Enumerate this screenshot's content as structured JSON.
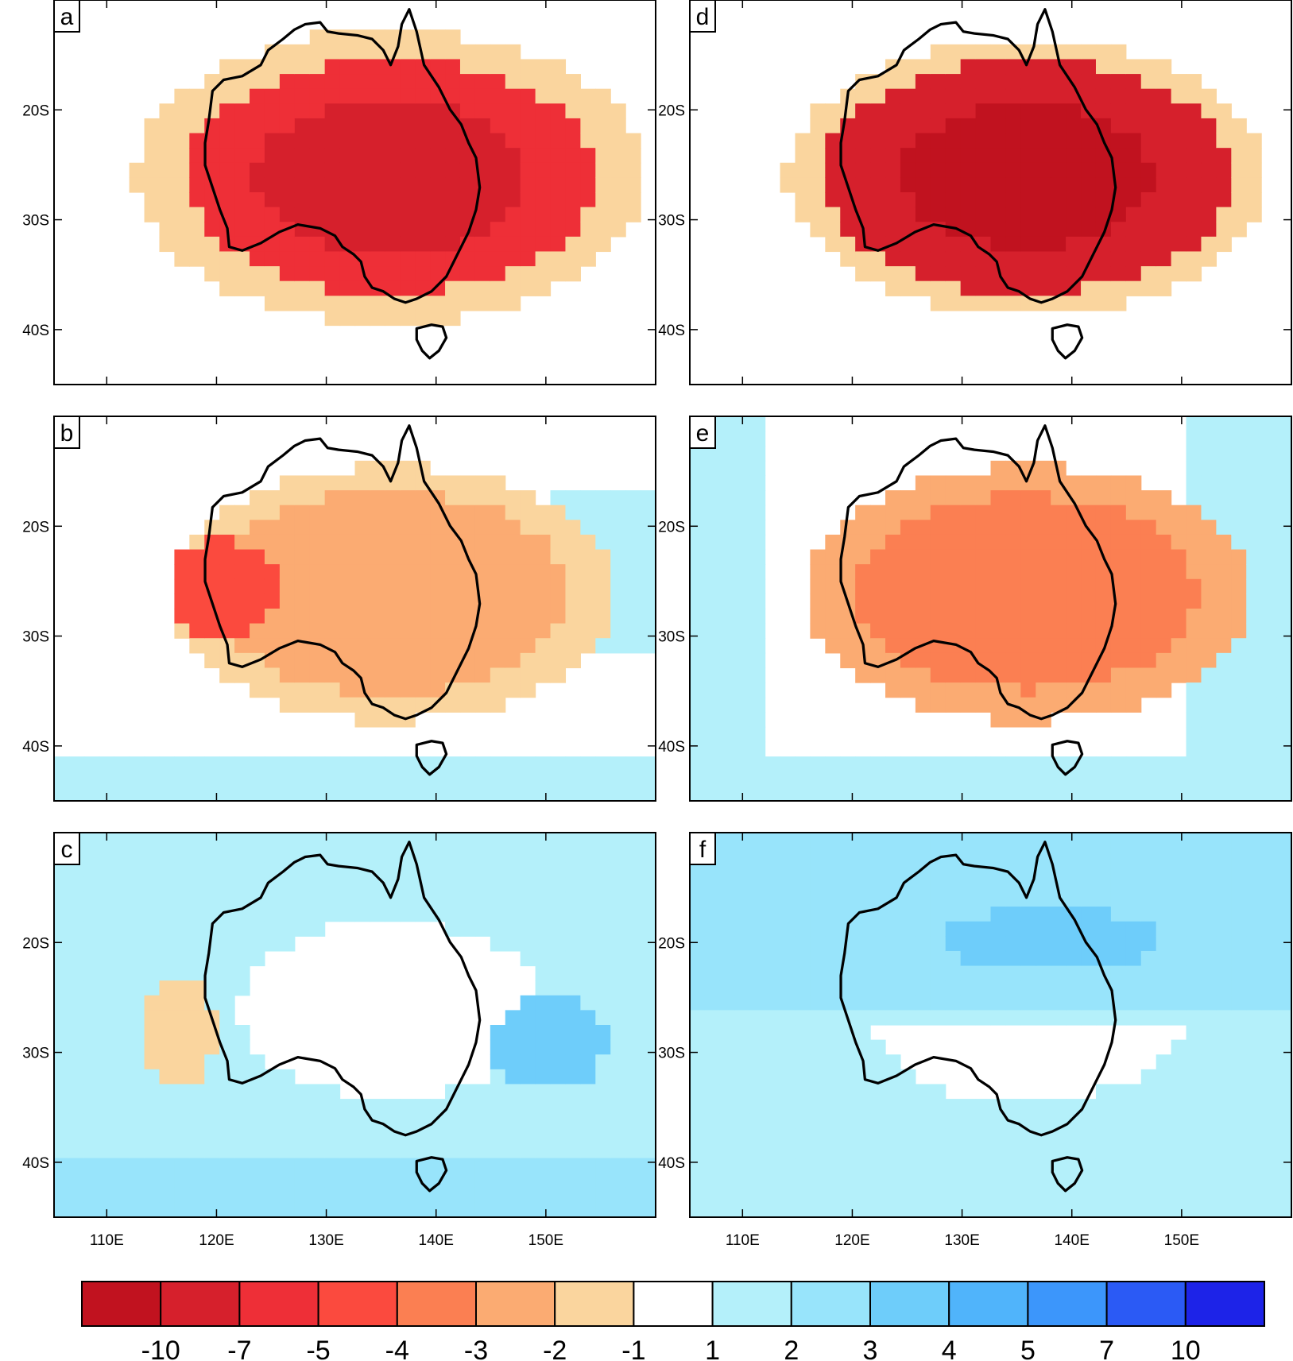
{
  "panels": [
    {
      "label": "a",
      "pattern": "neg_strong_a"
    },
    {
      "label": "d",
      "pattern": "neg_strong_d"
    },
    {
      "label": "b",
      "pattern": "neg_mid_b"
    },
    {
      "label": "e",
      "pattern": "neg_mid_e"
    },
    {
      "label": "c",
      "pattern": "pos_c"
    },
    {
      "label": "f",
      "pattern": "pos_f"
    }
  ],
  "lat_labels": [
    "20S",
    "30S",
    "40S"
  ],
  "lat_values": [
    -20,
    -30,
    -40
  ],
  "lon_labels": [
    "110E",
    "120E",
    "130E",
    "140E",
    "150E"
  ],
  "lon_values": [
    110,
    120,
    130,
    140,
    150
  ],
  "map_extent": {
    "lon_min": 105.2,
    "lon_max": 160,
    "lat_min": -45,
    "lat_max": -10
  },
  "colorbar": {
    "colors": [
      "#c1121f",
      "#d6202c",
      "#ee2f37",
      "#fb4a3e",
      "#fb7f52",
      "#fbab72",
      "#fad59e",
      "#ffffff",
      "#b4f0fa",
      "#98e4fb",
      "#6ecdfa",
      "#50b4fb",
      "#3c96fb",
      "#2b5af5",
      "#1d23e8"
    ],
    "labels": [
      "-10",
      "-7",
      "-5",
      "-4",
      "-3",
      "-2",
      "-1",
      "1",
      "2",
      "3",
      "4",
      "5",
      "7",
      "10"
    ]
  }
}
